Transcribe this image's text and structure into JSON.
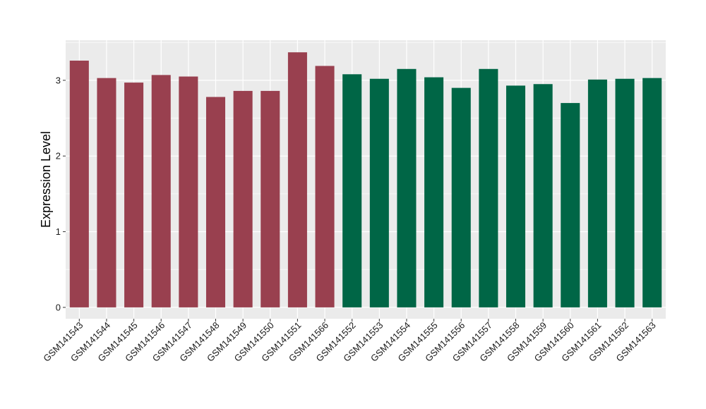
{
  "chart_data": {
    "type": "bar",
    "title": "",
    "xlabel": "",
    "ylabel": "Expression Level",
    "ylim": [
      -0.15,
      3.53
    ],
    "yticks": [
      0,
      1,
      2,
      3
    ],
    "grid": true,
    "legend": "none",
    "background_color": "#EBEBEB",
    "gridline_color": "#FFFFFF",
    "categories": [
      "GSM141543",
      "GSM141544",
      "GSM141545",
      "GSM141546",
      "GSM141547",
      "GSM141548",
      "GSM141549",
      "GSM141550",
      "GSM141551",
      "GSM141566",
      "GSM141552",
      "GSM141553",
      "GSM141554",
      "GSM141555",
      "GSM141556",
      "GSM141557",
      "GSM141558",
      "GSM141559",
      "GSM141560",
      "GSM141561",
      "GSM141562",
      "GSM141563"
    ],
    "values": [
      3.26,
      3.03,
      2.97,
      3.07,
      3.05,
      2.78,
      2.86,
      2.86,
      3.37,
      3.19,
      3.08,
      3.02,
      3.15,
      3.04,
      2.9,
      3.15,
      2.93,
      2.95,
      2.7,
      3.01,
      3.02,
      3.03
    ],
    "bar_colors": [
      "#99404F",
      "#99404F",
      "#99404F",
      "#99404F",
      "#99404F",
      "#99404F",
      "#99404F",
      "#99404F",
      "#99404F",
      "#99404F",
      "#006646",
      "#006646",
      "#006646",
      "#006646",
      "#006646",
      "#006646",
      "#006646",
      "#006646",
      "#006646",
      "#006646",
      "#006646",
      "#006646"
    ]
  }
}
